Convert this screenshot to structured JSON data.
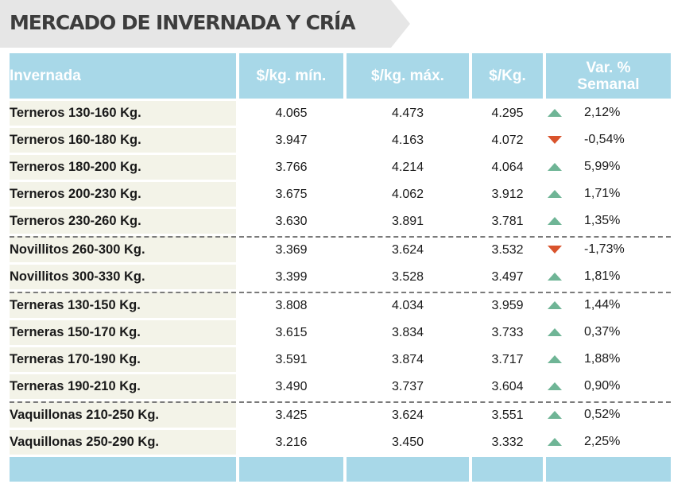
{
  "title": "MERCADO DE INVERNADA Y CRÍA",
  "headers": [
    "Invernada",
    "$/kg. mín.",
    "$/kg. máx.",
    "$/Kg.",
    "Var. % Semanal"
  ],
  "rows": [
    {
      "name": "Terneros 130-160 Kg.",
      "min": "4.065",
      "max": "4.473",
      "avg": "4.295",
      "trend": "up",
      "var": "2,12%"
    },
    {
      "name": "Terneros 160-180 Kg.",
      "min": "3.947",
      "max": "4.163",
      "avg": "4.072",
      "trend": "down",
      "var": "-0,54%"
    },
    {
      "name": "Terneros 180-200 Kg.",
      "min": "3.766",
      "max": "4.214",
      "avg": "4.064",
      "trend": "up",
      "var": "5,99%"
    },
    {
      "name": "Terneros 200-230 Kg.",
      "min": "3.675",
      "max": "4.062",
      "avg": "3.912",
      "trend": "up",
      "var": "1,71%"
    },
    {
      "name": "Terneros 230-260 Kg.",
      "min": "3.630",
      "max": "3.891",
      "avg": "3.781",
      "trend": "up",
      "var": "1,35%"
    },
    {
      "name": "Novillitos 260-300 Kg.",
      "min": "3.369",
      "max": "3.624",
      "avg": "3.532",
      "trend": "down",
      "var": "-1,73%"
    },
    {
      "name": "Novillitos 300-330 Kg.",
      "min": "3.399",
      "max": "3.528",
      "avg": "3.497",
      "trend": "up",
      "var": "1,81%"
    },
    {
      "name": "Terneras 130-150 Kg.",
      "min": "3.808",
      "max": "4.034",
      "avg": "3.959",
      "trend": "up",
      "var": "1,44%"
    },
    {
      "name": "Terneras 150-170 Kg.",
      "min": "3.615",
      "max": "3.834",
      "avg": "3.733",
      "trend": "up",
      "var": "0,37%"
    },
    {
      "name": "Terneras 170-190 Kg.",
      "min": "3.591",
      "max": "3.874",
      "avg": "3.717",
      "trend": "up",
      "var": "1,88%"
    },
    {
      "name": "Terneras 190-210 Kg.",
      "min": "3.490",
      "max": "3.737",
      "avg": "3.604",
      "trend": "up",
      "var": "0,90%"
    },
    {
      "name": "Vaquillonas 210-250 Kg.",
      "min": "3.425",
      "max": "3.624",
      "avg": "3.551",
      "trend": "up",
      "var": "0,52%"
    },
    {
      "name": "Vaquillonas 250-290 Kg.",
      "min": "3.216",
      "max": "3.450",
      "avg": "3.332",
      "trend": "up",
      "var": "2,25%"
    }
  ],
  "group_separators_before": [
    5,
    7,
    11
  ],
  "colors": {
    "header_bg": "#a8d8e8",
    "first_col_bg": "#f3f3e8",
    "up_arrow": "#6fb596",
    "down_arrow": "#d9532c"
  }
}
